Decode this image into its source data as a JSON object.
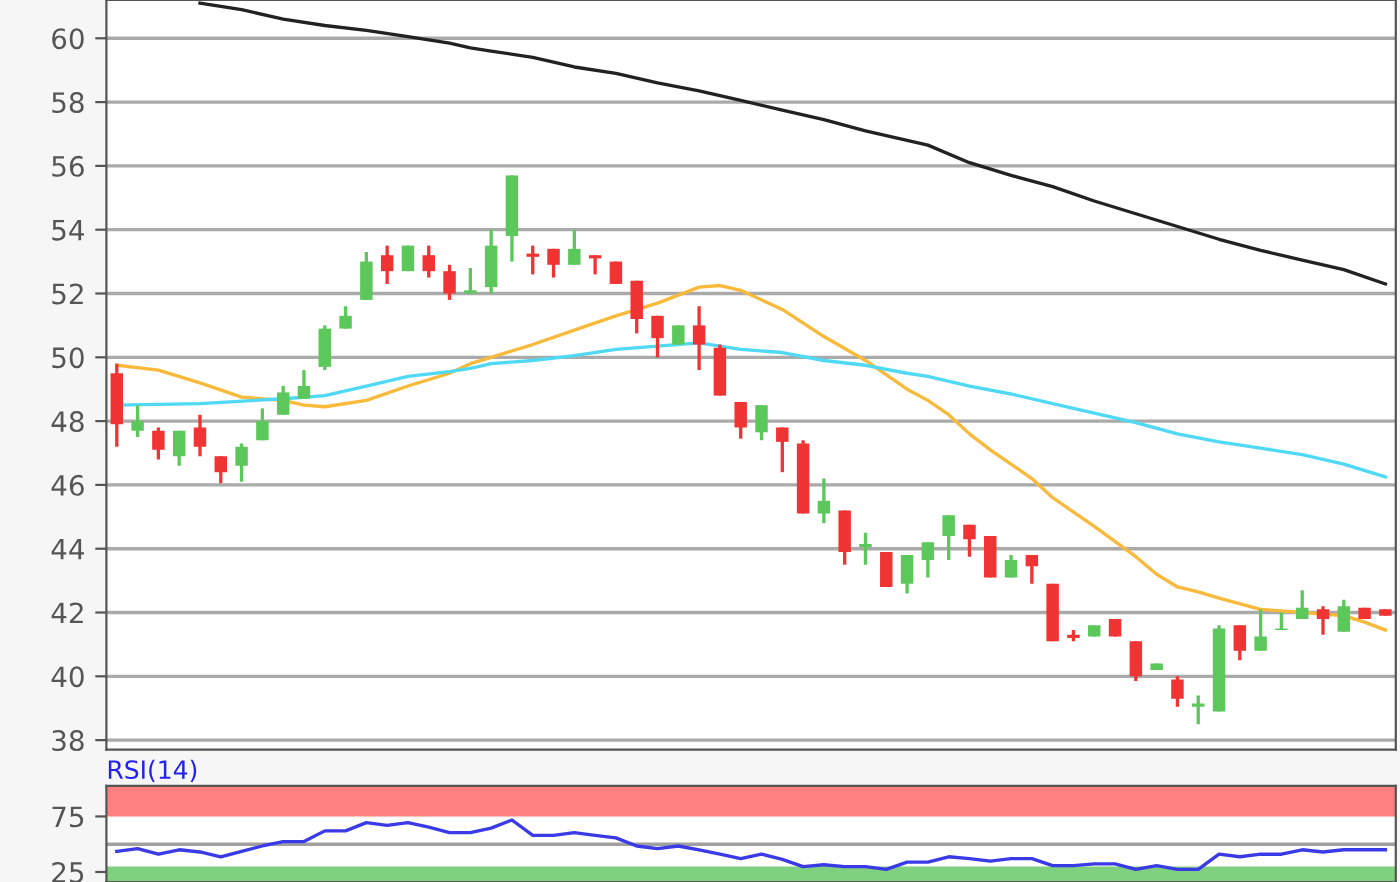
{
  "chart_data": [
    {
      "type": "candlestick",
      "categories": [
        null,
        null,
        null,
        null,
        null,
        null,
        null,
        null,
        null,
        null,
        null,
        null,
        null,
        null,
        null,
        null,
        null,
        null,
        null,
        null,
        null,
        null,
        null,
        null,
        null,
        null,
        null,
        null,
        null,
        null,
        null,
        null,
        null,
        null,
        null,
        null,
        null,
        null,
        null,
        null,
        null,
        null,
        null,
        null,
        null,
        null,
        null,
        null,
        null,
        null,
        null,
        null,
        null,
        null,
        null,
        null,
        null,
        null,
        null,
        null,
        null,
        null
      ],
      "ohlc": [
        [
          49.5,
          49.8,
          47.2,
          47.9
        ],
        [
          47.7,
          48.5,
          47.5,
          48.0
        ],
        [
          47.7,
          47.8,
          46.8,
          47.1
        ],
        [
          46.9,
          47.7,
          46.6,
          47.7
        ],
        [
          47.8,
          48.2,
          46.9,
          47.2
        ],
        [
          46.9,
          46.9,
          46.05,
          46.4
        ],
        [
          46.6,
          47.3,
          46.1,
          47.2
        ],
        [
          47.4,
          48.4,
          47.4,
          48.0
        ],
        [
          48.2,
          49.1,
          48.2,
          48.9
        ],
        [
          48.7,
          49.6,
          48.7,
          49.1
        ],
        [
          49.7,
          51.0,
          49.6,
          50.9
        ],
        [
          50.9,
          51.6,
          50.9,
          51.3
        ],
        [
          51.8,
          53.3,
          51.8,
          53.0
        ],
        [
          53.2,
          53.5,
          52.3,
          52.7
        ],
        [
          52.7,
          53.5,
          52.7,
          53.5
        ],
        [
          53.2,
          53.5,
          52.5,
          52.7
        ],
        [
          52.7,
          52.9,
          51.8,
          52.0
        ],
        [
          52.0,
          52.8,
          52.0,
          52.1
        ],
        [
          52.2,
          54.0,
          52.0,
          53.5
        ],
        [
          53.8,
          55.7,
          53.0,
          55.7
        ],
        [
          53.25,
          53.5,
          52.6,
          53.15
        ],
        [
          53.4,
          53.4,
          52.5,
          52.9
        ],
        [
          52.9,
          54.0,
          52.9,
          53.4
        ],
        [
          53.2,
          53.2,
          52.6,
          53.1
        ],
        [
          53.0,
          53.0,
          52.3,
          52.3
        ],
        [
          52.4,
          52.4,
          50.75,
          51.2
        ],
        [
          51.3,
          51.3,
          50.0,
          50.6
        ],
        [
          50.4,
          51.0,
          50.4,
          51.0
        ],
        [
          51.0,
          51.6,
          49.6,
          50.4
        ],
        [
          50.3,
          50.4,
          48.8,
          48.8
        ],
        [
          48.6,
          48.6,
          47.45,
          47.8
        ],
        [
          47.65,
          48.5,
          47.4,
          48.5
        ],
        [
          47.8,
          47.8,
          46.4,
          47.35
        ],
        [
          47.3,
          47.4,
          45.1,
          45.1
        ],
        [
          45.1,
          46.2,
          44.8,
          45.5
        ],
        [
          45.2,
          45.2,
          43.5,
          43.9
        ],
        [
          44.05,
          44.5,
          43.5,
          44.15
        ],
        [
          43.9,
          43.9,
          42.8,
          42.8
        ],
        [
          42.9,
          43.8,
          42.6,
          43.8
        ],
        [
          43.65,
          44.2,
          43.1,
          44.2
        ],
        [
          44.4,
          45.05,
          43.65,
          45.05
        ],
        [
          44.75,
          44.75,
          43.75,
          44.3
        ],
        [
          44.4,
          44.4,
          43.1,
          43.1
        ],
        [
          43.1,
          43.8,
          43.1,
          43.65
        ],
        [
          43.8,
          43.8,
          42.9,
          43.45
        ],
        [
          42.9,
          42.9,
          41.1,
          41.1
        ],
        [
          41.3,
          41.45,
          41.1,
          41.2
        ],
        [
          41.25,
          41.6,
          41.25,
          41.6
        ],
        [
          41.8,
          41.8,
          41.25,
          41.25
        ],
        [
          41.1,
          41.1,
          39.85,
          40.0
        ],
        [
          40.2,
          40.4,
          40.2,
          40.4
        ],
        [
          39.9,
          40.0,
          39.05,
          39.3
        ],
        [
          39.05,
          39.4,
          38.5,
          39.15
        ],
        [
          38.9,
          41.6,
          38.9,
          41.5
        ],
        [
          41.6,
          41.6,
          40.5,
          40.8
        ],
        [
          40.8,
          42.1,
          40.8,
          41.25
        ],
        [
          41.45,
          42.0,
          41.45,
          41.5
        ],
        [
          41.8,
          42.7,
          41.8,
          42.15
        ],
        [
          42.1,
          42.2,
          41.3,
          41.8
        ],
        [
          41.4,
          42.4,
          41.4,
          42.2
        ],
        [
          42.15,
          42.15,
          41.8,
          41.8
        ],
        [
          42.1,
          42.1,
          41.9,
          41.9
        ]
      ],
      "series": [
        {
          "type": "line",
          "color": "#f9b93a",
          "values": [
            49.75,
            null,
            49.6,
            null,
            49.2,
            null,
            48.75,
            null,
            48.65,
            48.5,
            48.45,
            null,
            48.65,
            null,
            49.1,
            null,
            49.5,
            49.8,
            50.0,
            null,
            50.4,
            null,
            50.85,
            null,
            51.3,
            null,
            51.7,
            null,
            52.2,
            52.25,
            52.1,
            null,
            51.5,
            null,
            50.65,
            null,
            49.9,
            null,
            49.0,
            48.65,
            48.2,
            47.6,
            47.1,
            46.65,
            46.2,
            45.6,
            null,
            44.7,
            null,
            43.75,
            43.2,
            42.8,
            42.65,
            42.45,
            null,
            42.1,
            null,
            42.0,
            null,
            41.9,
            41.7,
            41.45
          ]
        },
        {
          "type": "line",
          "color": "#4fd9f5",
          "values": [
            48.5,
            null,
            null,
            null,
            48.55,
            null,
            null,
            null,
            48.7,
            null,
            48.8,
            null,
            49.1,
            null,
            49.4,
            null,
            49.55,
            49.65,
            49.8,
            null,
            49.9,
            null,
            50.05,
            null,
            50.25,
            null,
            50.35,
            null,
            50.45,
            null,
            50.25,
            null,
            50.15,
            null,
            49.9,
            null,
            49.75,
            null,
            49.5,
            49.4,
            null,
            49.1,
            null,
            48.85,
            null,
            48.55,
            null,
            48.25,
            null,
            47.95,
            null,
            47.6,
            null,
            47.35,
            null,
            47.15,
            null,
            46.95,
            null,
            46.65,
            null,
            46.25
          ]
        },
        {
          "type": "line",
          "color": "#222222",
          "values": [
            null,
            null,
            null,
            null,
            61.1,
            null,
            60.9,
            null,
            60.6,
            null,
            60.4,
            null,
            60.25,
            null,
            60.05,
            null,
            59.85,
            59.7,
            59.6,
            null,
            59.4,
            null,
            59.1,
            null,
            58.9,
            null,
            58.6,
            null,
            58.35,
            null,
            58.05,
            null,
            57.75,
            null,
            57.45,
            null,
            57.1,
            null,
            56.8,
            56.65,
            null,
            56.1,
            null,
            55.7,
            null,
            55.35,
            null,
            54.9,
            null,
            54.5,
            null,
            54.1,
            null,
            53.7,
            null,
            53.35,
            null,
            53.05,
            null,
            52.75,
            null,
            52.3
          ]
        }
      ],
      "ylim": [
        37.7,
        61.2
      ],
      "yticks": [
        38,
        40,
        42,
        44,
        46,
        48,
        50,
        52,
        54,
        56,
        58,
        60
      ],
      "grid": "y",
      "tick_labels": "y"
    },
    {
      "type": "line",
      "title": "RSI(14)",
      "categories": [
        null,
        null,
        null,
        null,
        null,
        null,
        null,
        null,
        null,
        null,
        null,
        null,
        null,
        null,
        null,
        null,
        null,
        null,
        null,
        null,
        null,
        null,
        null,
        null,
        null,
        null,
        null,
        null,
        null,
        null,
        null,
        null,
        null,
        null,
        null,
        null,
        null,
        null,
        null,
        null,
        null,
        null,
        null,
        null,
        null,
        null,
        null,
        null,
        null,
        null,
        null,
        null,
        null,
        null,
        null,
        null,
        null,
        null,
        null,
        null,
        null,
        null
      ],
      "series": [
        {
          "color": "#3a3ae6",
          "values": [
            43.6,
            46,
            41,
            45,
            43,
            38.7,
            43.6,
            48.4,
            52.4,
            52.4,
            62,
            62,
            69.4,
            67,
            69.4,
            65.3,
            60.5,
            60.5,
            64.5,
            71.8,
            58,
            58,
            60.5,
            58,
            55.7,
            48.4,
            46,
            48.4,
            45,
            41,
            37,
            41,
            36.3,
            29.9,
            31.5,
            29.9,
            29.9,
            27.4,
            33.9,
            33.9,
            38.7,
            37,
            34.7,
            37,
            37,
            30.7,
            30.7,
            32.3,
            32.3,
            27.4,
            30.7,
            27.4,
            27.4,
            41,
            38.7,
            41,
            41,
            45,
            43,
            45,
            45,
            45
          ]
        }
      ],
      "ylim": [
        16,
        102.5
      ],
      "yticks": [
        25,
        75
      ],
      "bands": [
        {
          "axis": "y",
          "from": 75,
          "to": 102.5,
          "color": "#ff8080"
        },
        {
          "axis": "y",
          "from": 16,
          "to": 30,
          "color": "#7fd07f"
        }
      ],
      "ref_lines": [
        {
          "axis": "y",
          "value": 50,
          "color": "#a0a0a0"
        }
      ],
      "tick_labels": "y"
    }
  ]
}
